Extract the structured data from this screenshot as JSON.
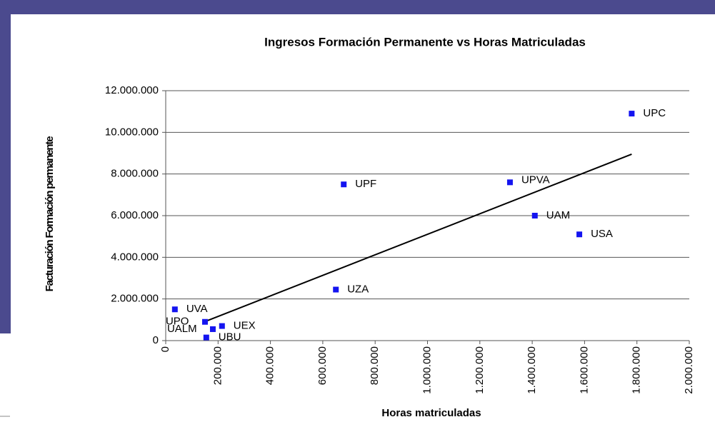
{
  "chart_data": {
    "type": "scatter",
    "title": "Ingresos Formación Permanente vs Horas Matriculadas",
    "x_label": "Horas matriculadas",
    "y_label": "Facturación Formación permanente",
    "color": "#1414f0",
    "grid": true,
    "xlim": [
      0,
      2000000
    ],
    "ylim": [
      0,
      12000000
    ],
    "xticks": [
      0,
      {
        "value": 200000,
        "label": "200.000"
      },
      {
        "value": 400000,
        "label": "400.000"
      },
      {
        "value": 600000,
        "label": "600.000"
      },
      {
        "value": 800000,
        "label": "800.000"
      },
      {
        "value": 1000000,
        "label": "1.000.000"
      },
      {
        "value": 1200000,
        "label": "1.200.000"
      },
      {
        "value": 1400000,
        "label": "1.400.000"
      },
      {
        "value": 1600000,
        "label": "1.600.000"
      },
      {
        "value": 1800000,
        "label": "1.800.000"
      },
      {
        "value": 2000000,
        "label": "2.000.000"
      }
    ],
    "yticks": [
      0,
      {
        "value": 2000000,
        "label": "2.000.000"
      },
      {
        "value": 4000000,
        "label": "4.000.000"
      },
      {
        "value": 6000000,
        "label": "6.000.000"
      },
      {
        "value": 8000000,
        "label": "8.000.000"
      },
      {
        "value": 10000000,
        "label": "10.000.000"
      },
      {
        "value": 12000000,
        "label": "12.000.000"
      }
    ],
    "point_labels": [
      "UPC",
      "UPF",
      "UPVA",
      "UAM",
      "USA",
      "UZA",
      "UVA",
      "UPO",
      "UALM",
      "UEX",
      "UBU"
    ],
    "x": [
      1780000,
      680000,
      1315000,
      1410000,
      1580000,
      650000,
      35000,
      150000,
      180000,
      215000,
      155000
    ],
    "y": [
      10900000,
      7500000,
      7600000,
      6000000,
      5100000,
      2450000,
      1500000,
      900000,
      550000,
      700000,
      150000
    ],
    "trendline": {
      "x": [
        145000,
        1780000
      ],
      "y": [
        890000,
        8950000
      ]
    }
  }
}
